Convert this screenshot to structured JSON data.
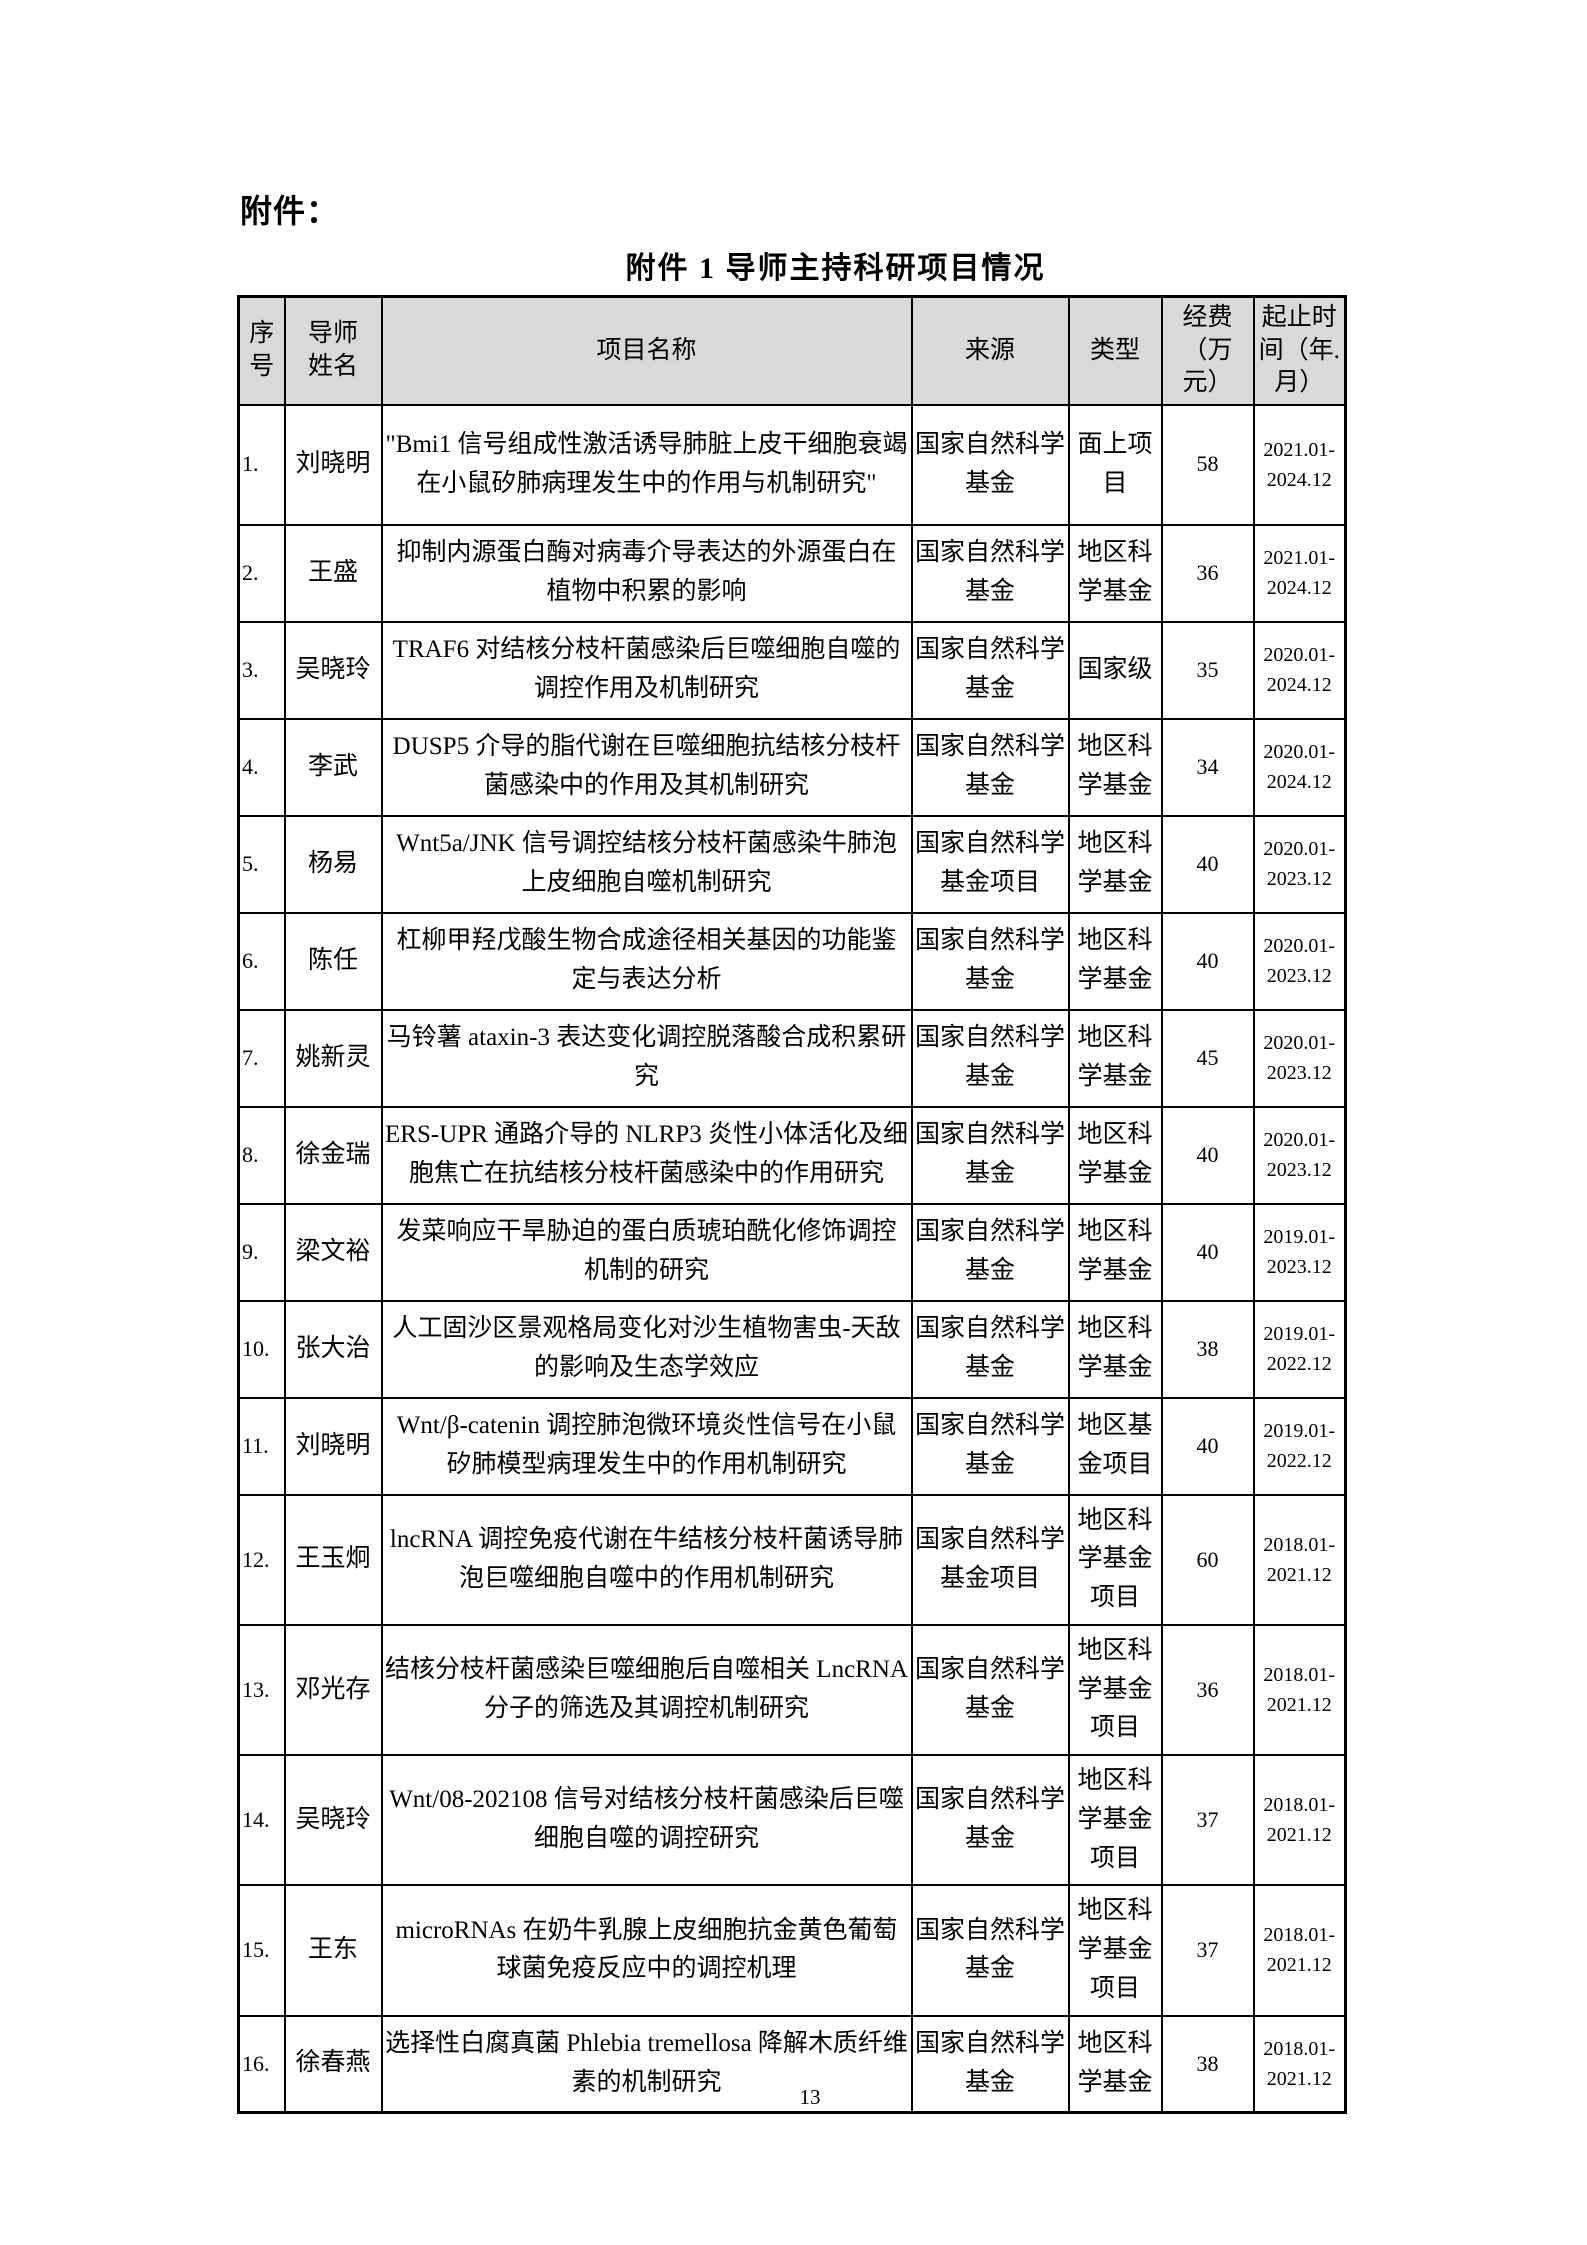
{
  "page": {
    "attachment_label": "附件：",
    "table_caption": "附件 1 导师主持科研项目情况",
    "page_number": "13"
  },
  "colors": {
    "header_bg": "#d9d9d9",
    "border": "#000000",
    "text": "#000000",
    "page_bg": "#ffffff"
  },
  "table": {
    "columns": [
      "序号",
      "导师姓名",
      "项目名称",
      "来源",
      "类型",
      "经费（万元）",
      "起止时间（年.月）"
    ],
    "rows": [
      {
        "no": "1.",
        "name": "刘晓明",
        "project": "\"Bmi1 信号组成性激活诱导肺脏上皮干细胞衰竭在小鼠矽肺病理发生中的作用与机制研究\"",
        "source": "国家自然科学基金",
        "type": "面上项目",
        "funding": "58",
        "period": "2021.01-2024.12"
      },
      {
        "no": "2.",
        "name": "王盛",
        "project": "抑制内源蛋白酶对病毒介导表达的外源蛋白在植物中积累的影响",
        "source": "国家自然科学基金",
        "type": "地区科学基金",
        "funding": "36",
        "period": "2021.01-2024.12"
      },
      {
        "no": "3.",
        "name": "吴晓玲",
        "project": "TRAF6 对结核分枝杆菌感染后巨噬细胞自噬的调控作用及机制研究",
        "source": "国家自然科学基金",
        "type": "国家级",
        "funding": "35",
        "period": "2020.01-2024.12"
      },
      {
        "no": "4.",
        "name": "李武",
        "project": "DUSP5 介导的脂代谢在巨噬细胞抗结核分枝杆菌感染中的作用及其机制研究",
        "source": "国家自然科学基金",
        "type": "地区科学基金",
        "funding": "34",
        "period": "2020.01-2024.12"
      },
      {
        "no": "5.",
        "name": "杨易",
        "project": "Wnt5a/JNK 信号调控结核分枝杆菌感染牛肺泡上皮细胞自噬机制研究",
        "source": "国家自然科学基金项目",
        "type": "地区科学基金",
        "funding": "40",
        "period": "2020.01-2023.12"
      },
      {
        "no": "6.",
        "name": "陈任",
        "project": "杠柳甲羟戊酸生物合成途径相关基因的功能鉴定与表达分析",
        "source": "国家自然科学基金",
        "type": "地区科学基金",
        "funding": "40",
        "period": "2020.01-2023.12"
      },
      {
        "no": "7.",
        "name": "姚新灵",
        "project": "马铃薯 ataxin-3 表达变化调控脱落酸合成积累研究",
        "source": "国家自然科学基金",
        "type": "地区科学基金",
        "funding": "45",
        "period": "2020.01-2023.12"
      },
      {
        "no": "8.",
        "name": "徐金瑞",
        "project": "ERS-UPR 通路介导的 NLRP3 炎性小体活化及细胞焦亡在抗结核分枝杆菌感染中的作用研究",
        "source": "国家自然科学基金",
        "type": "地区科学基金",
        "funding": "40",
        "period": "2020.01-2023.12"
      },
      {
        "no": "9.",
        "name": "梁文裕",
        "project": "发菜响应干旱胁迫的蛋白质琥珀酰化修饰调控机制的研究",
        "source": "国家自然科学基金",
        "type": "地区科学基金",
        "funding": "40",
        "period": "2019.01-2023.12"
      },
      {
        "no": "10.",
        "name": "张大治",
        "project": "人工固沙区景观格局变化对沙生植物害虫-天敌的影响及生态学效应",
        "source": "国家自然科学基金",
        "type": "地区科学基金",
        "funding": "38",
        "period": "2019.01-2022.12"
      },
      {
        "no": "11.",
        "name": "刘晓明",
        "project": "Wnt/β-catenin 调控肺泡微环境炎性信号在小鼠矽肺模型病理发生中的作用机制研究",
        "source": "国家自然科学基金",
        "type": "地区基金项目",
        "funding": "40",
        "period": "2019.01-2022.12"
      },
      {
        "no": "12.",
        "name": "王玉炯",
        "project": "lncRNA 调控免疫代谢在牛结核分枝杆菌诱导肺泡巨噬细胞自噬中的作用机制研究",
        "source": "国家自然科学基金项目",
        "type": "地区科学基金项目",
        "funding": "60",
        "period": "2018.01-2021.12"
      },
      {
        "no": "13.",
        "name": "邓光存",
        "project": "结核分枝杆菌感染巨噬细胞后自噬相关 LncRNA 分子的筛选及其调控机制研究",
        "source": "国家自然科学基金",
        "type": "地区科学基金项目",
        "funding": "36",
        "period": "2018.01-2021.12"
      },
      {
        "no": "14.",
        "name": "吴晓玲",
        "project": "Wnt/08-202108 信号对结核分枝杆菌感染后巨噬细胞自噬的调控研究",
        "source": "国家自然科学基金",
        "type": "地区科学基金项目",
        "funding": "37",
        "period": "2018.01-2021.12"
      },
      {
        "no": "15.",
        "name": "王东",
        "project": "microRNAs 在奶牛乳腺上皮细胞抗金黄色葡萄球菌免疫反应中的调控机理",
        "source": "国家自然科学基金",
        "type": "地区科学基金项目",
        "funding": "37",
        "period": "2018.01-2021.12"
      },
      {
        "no": "16.",
        "name": "徐春燕",
        "project": "选择性白腐真菌 Phlebia tremellosa 降解木质纤维素的机制研究",
        "source": "国家自然科学基金",
        "type": "地区科学基金",
        "funding": "38",
        "period": "2018.01-2021.12"
      }
    ]
  }
}
